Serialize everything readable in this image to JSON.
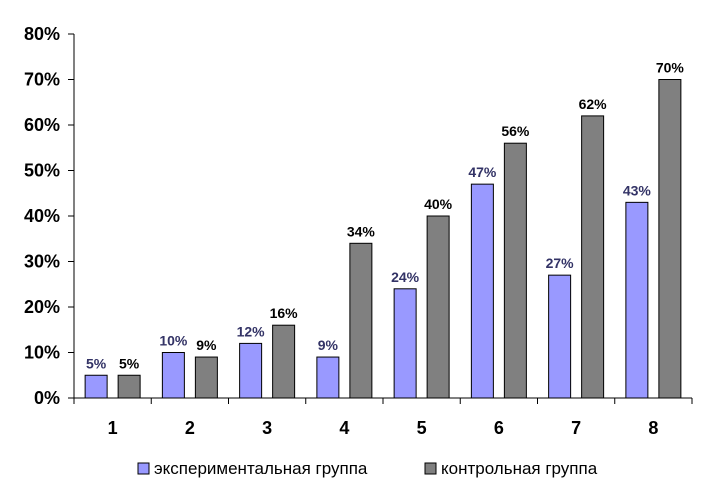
{
  "chart_data": {
    "type": "bar",
    "categories": [
      "1",
      "2",
      "3",
      "4",
      "5",
      "6",
      "7",
      "8"
    ],
    "series": [
      {
        "name": "экспериментальная группа",
        "values": [
          5,
          10,
          12,
          9,
          24,
          47,
          27,
          43
        ],
        "data_labels": [
          "5%",
          "10%",
          "12%",
          "9%",
          "24%",
          "47%",
          "27%",
          "43%"
        ],
        "color": "#9999ff",
        "label_color": "#333366"
      },
      {
        "name": "контрольная группа",
        "values": [
          5,
          9,
          16,
          34,
          40,
          56,
          62,
          70
        ],
        "data_labels": [
          "5%",
          "9%",
          "16%",
          "34%",
          "40%",
          "56%",
          "62%",
          "70%"
        ],
        "color": "#808080",
        "label_color": "#000000"
      }
    ],
    "y_tick_labels": [
      "0%",
      "10%",
      "20%",
      "30%",
      "40%",
      "50%",
      "60%",
      "70%",
      "80%"
    ],
    "ylim": [
      0,
      80
    ],
    "title": "",
    "xlabel": "",
    "ylabel": "",
    "grid": false,
    "legend_position": "bottom"
  }
}
